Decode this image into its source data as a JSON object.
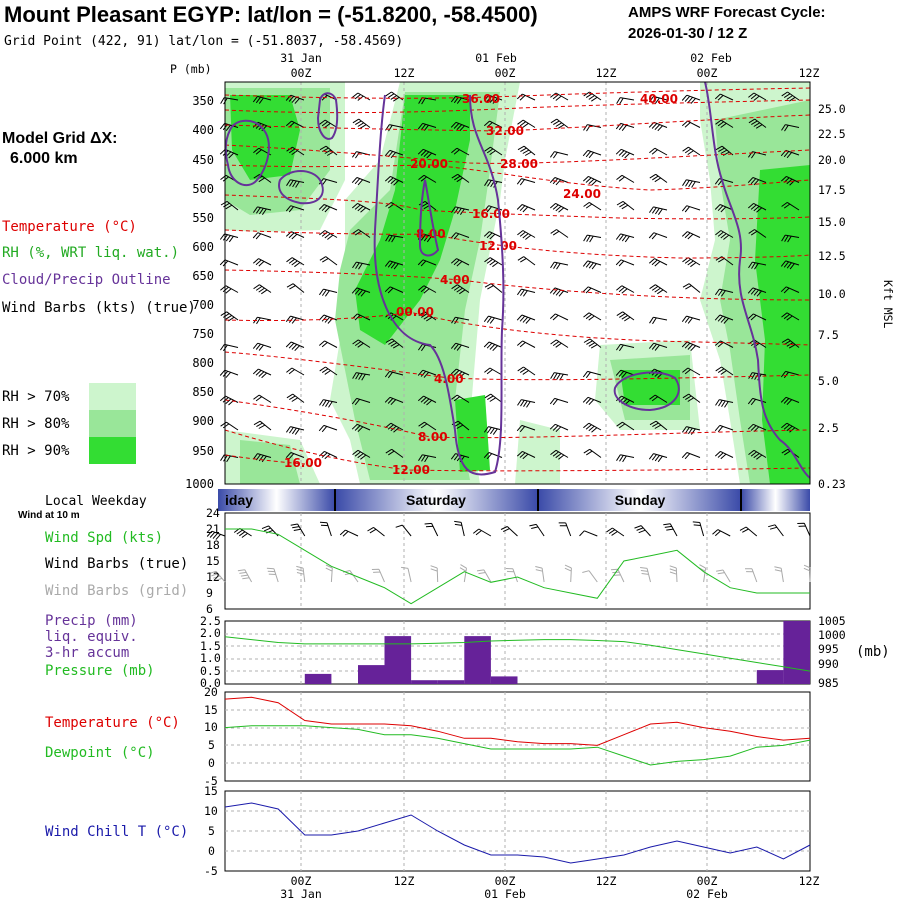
{
  "header": {
    "title": "Mount Pleasant EGYP:  lat/lon = (-51.8200, -58.4500)",
    "grid_point": "Grid Point (422, 91) lat/lon = (-51.8037, -58.4569)",
    "amps_line1": "AMPS WRF Forecast Cycle:",
    "amps_line2": "2026-01-30 / 12  Z"
  },
  "time_axis": {
    "ticks": [
      "00Z",
      "12Z",
      "00Z",
      "12Z",
      "00Z",
      "12Z"
    ],
    "dates": [
      "31 Jan",
      "01 Feb",
      "02 Feb"
    ],
    "hours": [
      0,
      12,
      24,
      36,
      48,
      60,
      72
    ],
    "date_hours": [
      12,
      36,
      60
    ],
    "range_hours": [
      -9,
      57
    ]
  },
  "left_legend": {
    "model_grid_line1": "Model Grid ΔX:",
    "model_grid_line2": "6.000 km",
    "temperature": "Temperature (°C)",
    "rh": "RH (%, WRT liq. wat.)",
    "cloud": "Cloud/Precip Outline",
    "wind_barbs": "Wind Barbs (kts) (true)",
    "rh70": "RH > 70%",
    "rh80": "RH > 80%",
    "rh90": "RH > 90%",
    "colors": {
      "rh70": "#cdf5cd",
      "rh80": "#99e699",
      "rh90": "#33dd33",
      "temp": "#dd0000",
      "cloud": "#663399"
    }
  },
  "upper_axis": {
    "p_label": "P (mb)",
    "pressure_ticks": [
      350,
      400,
      450,
      500,
      550,
      600,
      650,
      700,
      750,
      800,
      850,
      900,
      950,
      1000
    ],
    "height_ticks": [
      "25.0",
      "22.5",
      "20.0",
      "17.5",
      "15.0",
      "12.5",
      "10.0",
      "7.5",
      "5.0",
      "2.5",
      "0.23"
    ],
    "height_label": "Kft MSL"
  },
  "temp_contours": [
    "36.00",
    "40.00",
    "32.00",
    "28.00",
    "20.00",
    "24.00",
    "16.00",
    "8.00",
    "12.00",
    "4.00",
    "00.00",
    "4.00",
    "8.00",
    "16.00",
    "12.00"
  ],
  "weekday": {
    "label": "Local Weekday",
    "sub": "Wind at 10 m",
    "days": [
      "iday",
      "Saturday",
      "Sunday"
    ],
    "colors": {
      "dark": "#3a4aa8",
      "light": "#ffffff"
    }
  },
  "wind_panel": {
    "y_ticks": [
      "24",
      "21",
      "18",
      "15",
      "12",
      "9",
      "6"
    ],
    "labels": [
      "Wind Spd (kts)",
      "Wind Barbs (true)",
      "Wind Barbs (grid)"
    ],
    "colors": {
      "speed": "#22bb22",
      "barb_true": "#000000",
      "barb_grid": "#aaaaaa"
    }
  },
  "precip_panel": {
    "labels": [
      "Precip (mm)",
      "liq. equiv.",
      "3-hr accum",
      "Pressure (mb)"
    ],
    "y_ticks": [
      "2.5",
      "2.0",
      "1.5",
      "1.0",
      "0.5",
      "0.0"
    ],
    "pressure_ticks": [
      "1005",
      "1000",
      "995",
      "990",
      "985"
    ],
    "pressure_unit": "(mb)",
    "colors": {
      "precip": "#662299",
      "pressure": "#22bb22",
      "label": "#663399"
    }
  },
  "temp_panel": {
    "labels": [
      "Temperature (°C)",
      "Dewpoint (°C)"
    ],
    "y_ticks": [
      "20",
      "15",
      "10",
      "5",
      "0",
      "-5"
    ],
    "colors": {
      "temp": "#dd0000",
      "dew": "#22bb22"
    }
  },
  "chill_panel": {
    "label": "Wind Chill T (°C)",
    "y_ticks": [
      "15",
      "10",
      "5",
      "0",
      "-5"
    ],
    "color": "#1a1aaa"
  },
  "chart_data": [
    {
      "type": "line",
      "title": "Wind Spd (kts)",
      "x": [
        -9,
        -6,
        -3,
        0,
        3,
        6,
        9,
        12,
        15,
        18,
        21,
        24,
        27,
        30,
        33,
        36,
        39,
        42,
        45,
        48,
        51,
        54,
        57
      ],
      "series": [
        {
          "name": "Wind Spd (kts)",
          "values": [
            21,
            21,
            20,
            17,
            14,
            12,
            10,
            7,
            10,
            13,
            11,
            12,
            10,
            9,
            8,
            15,
            16,
            17,
            13,
            10,
            9,
            9,
            9
          ]
        }
      ],
      "ylim": [
        6,
        24
      ]
    },
    {
      "type": "bar",
      "title": "Precip (mm) liq. equiv. 3-hr accum",
      "bars": [
        {
          "start": 0,
          "end": 3,
          "value": 0.4
        },
        {
          "start": 6,
          "end": 9,
          "value": 0.75
        },
        {
          "start": 9,
          "end": 12,
          "value": 1.9
        },
        {
          "start": 12,
          "end": 15,
          "value": 0.15
        },
        {
          "start": 15,
          "end": 18,
          "value": 0.15
        },
        {
          "start": 18,
          "end": 21,
          "value": 1.9
        },
        {
          "start": 21,
          "end": 24,
          "value": 0.3
        },
        {
          "start": 51,
          "end": 54,
          "value": 0.55
        },
        {
          "start": 54,
          "end": 57,
          "value": 2.5
        }
      ],
      "ylim": [
        0,
        2.5
      ]
    },
    {
      "type": "line",
      "title": "Pressure (mb)",
      "x": [
        -9,
        -6,
        -3,
        0,
        3,
        6,
        9,
        12,
        15,
        18,
        21,
        24,
        27,
        30,
        33,
        36,
        39,
        42,
        45,
        48,
        51,
        54,
        57
      ],
      "series": [
        {
          "name": "Pressure (mb)",
          "values": [
            1001.5,
            1000.5,
            999.5,
            999,
            999,
            999,
            999,
            999,
            999.2,
            999.5,
            1000,
            1000.3,
            1000.5,
            1000.5,
            1000.2,
            999.8,
            998.5,
            997,
            995.5,
            994,
            992.5,
            991,
            989.5
          ]
        }
      ],
      "ylim": [
        985,
        1007
      ]
    },
    {
      "type": "line",
      "title": "Temperature / Dewpoint (°C)",
      "x": [
        -9,
        -6,
        -3,
        0,
        3,
        6,
        9,
        12,
        15,
        18,
        21,
        24,
        27,
        30,
        33,
        36,
        39,
        42,
        45,
        48,
        51,
        54,
        57
      ],
      "series": [
        {
          "name": "Temperature (°C)",
          "values": [
            18,
            18.5,
            17,
            12,
            11,
            11,
            11,
            10.5,
            9,
            7,
            7,
            6,
            5.5,
            5.5,
            5,
            8,
            11,
            11.5,
            10,
            9,
            7.5,
            6.5,
            7
          ]
        },
        {
          "name": "Dewpoint (°C)",
          "values": [
            10,
            10.5,
            10.5,
            10.5,
            10,
            9.5,
            8,
            8,
            7,
            5.5,
            4,
            4,
            4,
            4,
            4.5,
            2,
            -0.5,
            0.5,
            1,
            2,
            4.5,
            5,
            6.5
          ]
        }
      ],
      "ylim": [
        -5,
        20
      ]
    },
    {
      "type": "line",
      "title": "Wind Chill T (°C)",
      "x": [
        -9,
        -6,
        -3,
        0,
        3,
        6,
        9,
        12,
        15,
        18,
        21,
        24,
        27,
        30,
        33,
        36,
        39,
        42,
        45,
        48,
        51,
        54,
        57
      ],
      "series": [
        {
          "name": "Wind Chill T (°C)",
          "values": [
            11,
            12,
            10.5,
            4,
            4,
            5,
            7,
            9,
            5,
            1.5,
            -1,
            -1,
            -1.5,
            -3,
            -2,
            -1,
            1,
            2.5,
            1,
            -0.5,
            1,
            -2,
            1.5
          ]
        }
      ],
      "ylim": [
        -5,
        15
      ]
    }
  ]
}
